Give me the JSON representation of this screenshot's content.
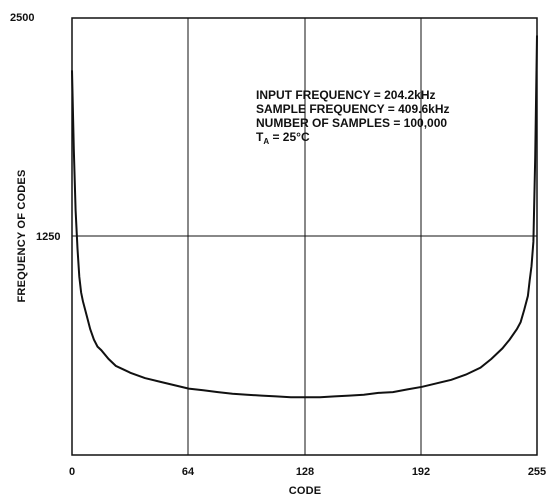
{
  "chart_data": {
    "type": "line",
    "title": "",
    "xlabel": "CODE",
    "ylabel": "FREQUENCY OF CODES",
    "xlim": [
      0,
      255
    ],
    "ylim": [
      0,
      2500
    ],
    "xticks": [
      "0",
      "64",
      "128",
      "192",
      "255"
    ],
    "yticks": [
      "1250",
      "2500"
    ],
    "grid": true,
    "annotations": [
      "INPUT FREQUENCY = 204.2kHz",
      "SAMPLE FREQUENCY = 409.6kHz",
      "NUMBER OF SAMPLES = 100,000",
      "T",
      "A",
      " = 25°C"
    ],
    "series": [
      {
        "x": [
          0,
          1,
          2,
          3,
          4,
          5,
          6,
          8,
          10,
          12,
          14,
          16,
          20,
          24,
          28,
          32,
          40,
          48,
          56,
          64,
          72,
          80,
          88,
          96,
          104,
          112,
          120,
          128,
          136,
          144,
          152,
          160,
          168,
          176,
          184,
          192,
          200,
          208,
          216,
          224,
          230,
          236,
          240,
          244,
          246,
          248,
          250,
          251,
          252,
          253,
          254,
          255
        ],
        "y": [
          2200,
          1750,
          1400,
          1180,
          1020,
          930,
          880,
          800,
          720,
          660,
          620,
          600,
          550,
          510,
          490,
          470,
          440,
          420,
          400,
          380,
          370,
          360,
          350,
          345,
          340,
          335,
          330,
          330,
          330,
          335,
          340,
          345,
          355,
          360,
          375,
          390,
          410,
          430,
          460,
          500,
          550,
          610,
          660,
          720,
          760,
          830,
          910,
          1000,
          1080,
          1220,
          1700,
          2400
        ]
      }
    ]
  }
}
